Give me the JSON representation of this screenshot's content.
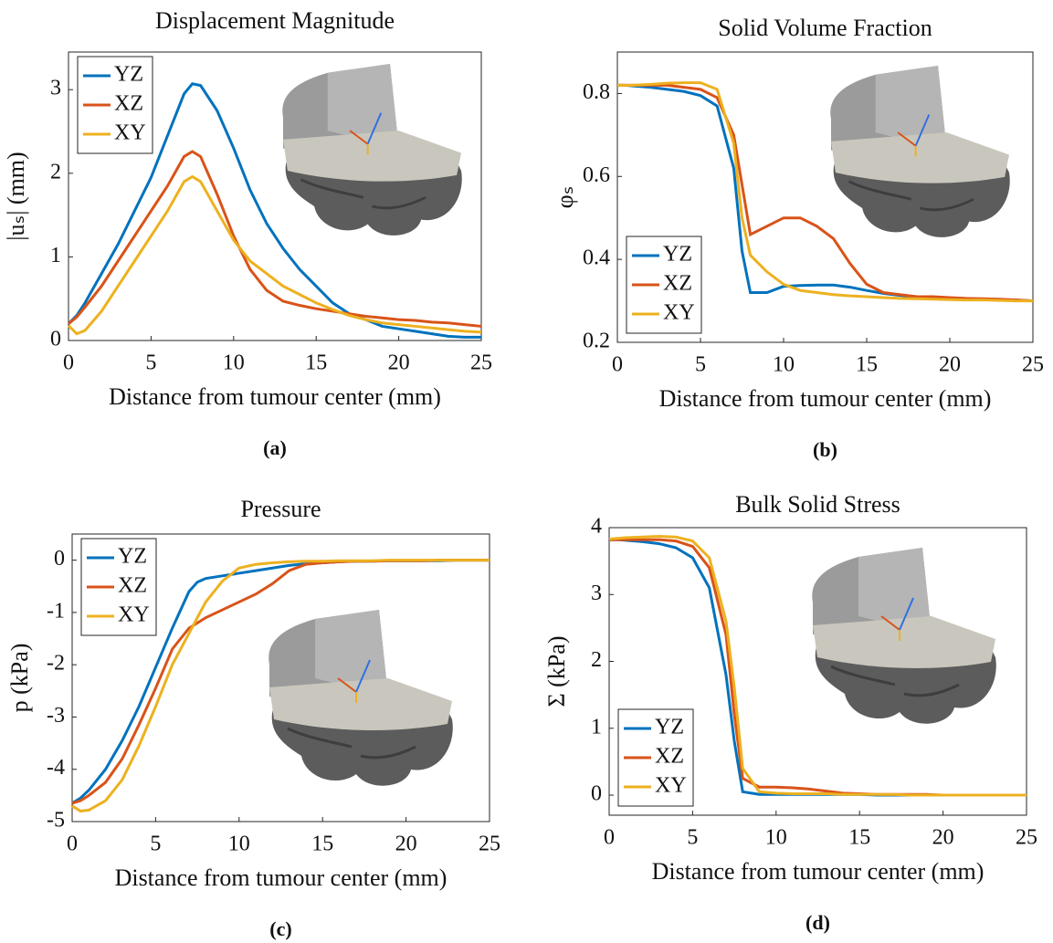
{
  "chart_data": [
    {
      "type": "line",
      "title": "Displacement Magnitude",
      "xlabel": "Distance from tumour center  (mm)",
      "ylabel": "|uₛ|  (mm)",
      "panel_label": "(a)",
      "xlim": [
        0,
        25
      ],
      "xticks": [
        0,
        5,
        10,
        15,
        20,
        25
      ],
      "ylim": [
        0,
        3.45
      ],
      "yticks": [
        0,
        1,
        2,
        3
      ],
      "legend": "upper left",
      "x": [
        0,
        0.5,
        1,
        2,
        3,
        4,
        5,
        6,
        7,
        7.5,
        8,
        9,
        10,
        11,
        12,
        13,
        14,
        15,
        16,
        17,
        18,
        19,
        20,
        21,
        22,
        23,
        24,
        25
      ],
      "series": [
        {
          "name": "YZ",
          "color": "#0072bd",
          "values": [
            0.2,
            0.3,
            0.45,
            0.8,
            1.15,
            1.55,
            1.95,
            2.45,
            2.95,
            3.07,
            3.05,
            2.75,
            2.3,
            1.8,
            1.4,
            1.1,
            0.85,
            0.65,
            0.45,
            0.32,
            0.25,
            0.17,
            0.14,
            0.11,
            0.08,
            0.05,
            0.04,
            0.04
          ]
        },
        {
          "name": "XZ",
          "color": "#d95319",
          "values": [
            0.2,
            0.28,
            0.4,
            0.65,
            0.95,
            1.25,
            1.55,
            1.85,
            2.2,
            2.26,
            2.2,
            1.75,
            1.25,
            0.85,
            0.6,
            0.47,
            0.42,
            0.38,
            0.35,
            0.32,
            0.29,
            0.27,
            0.25,
            0.24,
            0.22,
            0.21,
            0.19,
            0.17
          ]
        },
        {
          "name": "XY",
          "color": "#edb120",
          "values": [
            0.18,
            0.08,
            0.12,
            0.35,
            0.65,
            0.95,
            1.25,
            1.55,
            1.9,
            1.96,
            1.9,
            1.55,
            1.2,
            0.95,
            0.8,
            0.65,
            0.55,
            0.45,
            0.37,
            0.3,
            0.25,
            0.21,
            0.19,
            0.17,
            0.15,
            0.13,
            0.11,
            0.1
          ]
        }
      ]
    },
    {
      "type": "line",
      "title": "Solid Volume Fraction",
      "xlabel": "Distance from tumour center  (mm)",
      "ylabel": "φₛ",
      "panel_label": "(b)",
      "xlim": [
        0,
        25
      ],
      "xticks": [
        0,
        5,
        10,
        15,
        20,
        25
      ],
      "ylim": [
        0.2,
        0.9
      ],
      "yticks": [
        0.2,
        0.4,
        0.6,
        0.8
      ],
      "legend": "lower left",
      "x": [
        0,
        0.5,
        1,
        2,
        3,
        4,
        5,
        6,
        7,
        7.5,
        8,
        9,
        10,
        11,
        12,
        13,
        14,
        15,
        16,
        17,
        18,
        19,
        20,
        21,
        22,
        23,
        24,
        25
      ],
      "series": [
        {
          "name": "YZ",
          "color": "#0072bd",
          "values": [
            0.82,
            0.82,
            0.818,
            0.815,
            0.81,
            0.805,
            0.795,
            0.77,
            0.62,
            0.42,
            0.32,
            0.32,
            0.335,
            0.337,
            0.338,
            0.338,
            0.333,
            0.325,
            0.318,
            0.313,
            0.31,
            0.308,
            0.306,
            0.305,
            0.304,
            0.303,
            0.302,
            0.3
          ]
        },
        {
          "name": "XZ",
          "color": "#d95319",
          "values": [
            0.82,
            0.82,
            0.82,
            0.82,
            0.82,
            0.815,
            0.81,
            0.79,
            0.7,
            0.58,
            0.46,
            0.48,
            0.5,
            0.5,
            0.48,
            0.45,
            0.39,
            0.34,
            0.32,
            0.315,
            0.31,
            0.31,
            0.308,
            0.306,
            0.305,
            0.304,
            0.302,
            0.3
          ]
        },
        {
          "name": "XY",
          "color": "#edb120",
          "values": [
            0.82,
            0.82,
            0.82,
            0.822,
            0.825,
            0.826,
            0.826,
            0.81,
            0.68,
            0.5,
            0.41,
            0.37,
            0.34,
            0.325,
            0.32,
            0.315,
            0.312,
            0.31,
            0.308,
            0.306,
            0.305,
            0.304,
            0.303,
            0.302,
            0.302,
            0.301,
            0.3,
            0.3
          ]
        }
      ]
    },
    {
      "type": "line",
      "title": "Pressure",
      "xlabel": "Distance from tumour center  (mm)",
      "ylabel": "p  (kPa)",
      "panel_label": "(c)",
      "xlim": [
        0,
        25
      ],
      "xticks": [
        0,
        5,
        10,
        15,
        20,
        25
      ],
      "ylim": [
        -5,
        0.5
      ],
      "yticks": [
        -5,
        -4,
        -3,
        -2,
        -1,
        0
      ],
      "legend": "upper left",
      "x": [
        0,
        0.5,
        1,
        2,
        3,
        4,
        5,
        6,
        7,
        7.5,
        8,
        9,
        10,
        11,
        12,
        13,
        14,
        15,
        16,
        17,
        18,
        19,
        20,
        21,
        22,
        23,
        24,
        25
      ],
      "series": [
        {
          "name": "YZ",
          "color": "#0072bd",
          "values": [
            -4.65,
            -4.55,
            -4.4,
            -4.0,
            -3.45,
            -2.8,
            -2.05,
            -1.3,
            -0.6,
            -0.42,
            -0.35,
            -0.3,
            -0.25,
            -0.2,
            -0.15,
            -0.1,
            -0.07,
            -0.05,
            -0.03,
            -0.02,
            -0.02,
            -0.01,
            -0.01,
            -0.01,
            -0.01,
            0,
            0,
            0
          ]
        },
        {
          "name": "XZ",
          "color": "#d95319",
          "values": [
            -4.65,
            -4.6,
            -4.5,
            -4.25,
            -3.8,
            -3.15,
            -2.45,
            -1.7,
            -1.3,
            -1.2,
            -1.1,
            -0.95,
            -0.8,
            -0.65,
            -0.45,
            -0.2,
            -0.08,
            -0.05,
            -0.03,
            -0.02,
            -0.02,
            -0.01,
            -0.01,
            -0.01,
            0,
            0,
            0,
            0
          ]
        },
        {
          "name": "XY",
          "color": "#edb120",
          "values": [
            -4.7,
            -4.8,
            -4.78,
            -4.6,
            -4.2,
            -3.55,
            -2.8,
            -2.0,
            -1.4,
            -1.1,
            -0.8,
            -0.4,
            -0.15,
            -0.08,
            -0.05,
            -0.03,
            -0.02,
            -0.02,
            -0.01,
            -0.01,
            -0.01,
            0,
            0,
            0,
            0,
            0,
            0,
            0
          ]
        }
      ]
    },
    {
      "type": "line",
      "title": "Bulk Solid Stress",
      "xlabel": "Distance from tumour center  (mm)",
      "ylabel": "Σ  (kPa)",
      "panel_label": "(d)",
      "xlim": [
        0,
        25
      ],
      "xticks": [
        0,
        5,
        10,
        15,
        20,
        25
      ],
      "ylim": [
        -0.3,
        4
      ],
      "yticks": [
        0,
        1,
        2,
        3,
        4
      ],
      "legend": "lower left",
      "x": [
        0,
        0.5,
        1,
        2,
        3,
        4,
        5,
        6,
        7,
        7.5,
        8,
        9,
        10,
        11,
        12,
        13,
        14,
        15,
        16,
        17,
        18,
        19,
        20,
        21,
        22,
        23,
        24,
        25
      ],
      "series": [
        {
          "name": "YZ",
          "color": "#0072bd",
          "values": [
            3.82,
            3.82,
            3.81,
            3.79,
            3.76,
            3.7,
            3.55,
            3.1,
            1.8,
            0.8,
            0.05,
            0.01,
            0.01,
            0.01,
            0.01,
            0.01,
            0.01,
            0.01,
            0,
            0,
            0,
            0,
            0,
            0,
            0,
            0,
            0,
            0
          ]
        },
        {
          "name": "XZ",
          "color": "#d95319",
          "values": [
            3.82,
            3.82,
            3.82,
            3.82,
            3.82,
            3.8,
            3.72,
            3.4,
            2.4,
            1.2,
            0.25,
            0.12,
            0.12,
            0.11,
            0.09,
            0.06,
            0.03,
            0.02,
            0.01,
            0.01,
            0.01,
            0.01,
            0,
            0,
            0,
            0,
            0,
            0
          ]
        },
        {
          "name": "XY",
          "color": "#edb120",
          "values": [
            3.83,
            3.84,
            3.85,
            3.86,
            3.87,
            3.86,
            3.8,
            3.55,
            2.6,
            1.6,
            0.4,
            0.05,
            0.03,
            0.02,
            0.02,
            0.02,
            0.01,
            0.01,
            0.01,
            0.01,
            0,
            0,
            0,
            0,
            0,
            0,
            0,
            0
          ]
        }
      ]
    }
  ]
}
